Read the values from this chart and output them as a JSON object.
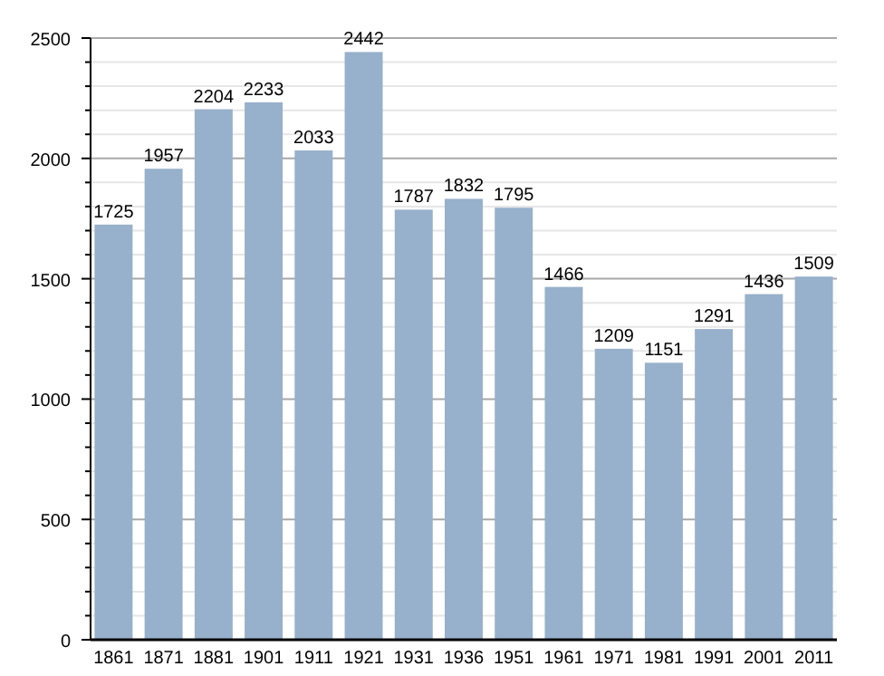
{
  "chart_data": {
    "type": "bar",
    "categories": [
      "1861",
      "1871",
      "1881",
      "1901",
      "1911",
      "1921",
      "1931",
      "1936",
      "1951",
      "1961",
      "1971",
      "1981",
      "1991",
      "2001",
      "2011"
    ],
    "values": [
      1725,
      1957,
      2204,
      2233,
      2033,
      2442,
      1787,
      1832,
      1795,
      1466,
      1209,
      1151,
      1291,
      1436,
      1509
    ],
    "color": "#97b0cb",
    "ylim": [
      0,
      2500
    ],
    "yticks": [
      0,
      {
        "value": 100,
        "label": null
      },
      {
        "value": 200,
        "label": null
      },
      {
        "value": 300,
        "label": null
      },
      {
        "value": 400,
        "label": null
      },
      500,
      {
        "value": 600,
        "label": null
      },
      {
        "value": 700,
        "label": null
      },
      {
        "value": 800,
        "label": null
      },
      {
        "value": 900,
        "label": null
      },
      1000,
      {
        "value": 1100,
        "label": null
      },
      {
        "value": 1200,
        "label": null
      },
      {
        "value": 1300,
        "label": null
      },
      {
        "value": 1400,
        "label": null
      },
      1500,
      {
        "value": 1600,
        "label": null
      },
      {
        "value": 1700,
        "label": null
      },
      {
        "value": 1800,
        "label": null
      },
      {
        "value": 1900,
        "label": null
      },
      2000,
      {
        "value": 2100,
        "label": null
      },
      {
        "value": 2200,
        "label": null
      },
      {
        "value": 2300,
        "label": null
      },
      {
        "value": 2400,
        "label": null
      },
      2500
    ],
    "grid": true,
    "data_labels": true
  }
}
